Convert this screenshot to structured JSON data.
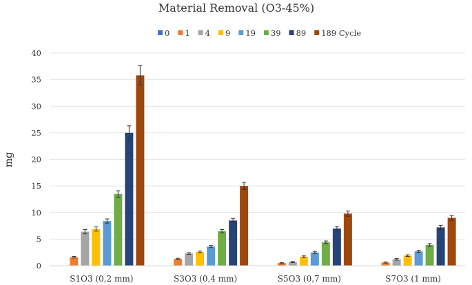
{
  "chart_data": {
    "type": "bar",
    "title": "Material Removal (O3-45%)",
    "xlabel": "",
    "ylabel": "mg",
    "ylim": [
      0,
      40
    ],
    "yticks": [
      "0",
      "5",
      "10",
      "15",
      "20",
      "25",
      "30",
      "35",
      "40"
    ],
    "grid": true,
    "legend_position": "top",
    "categories": [
      "S1O3 (0,2 mm)",
      "S3O3 (0,4 mm)",
      "S5O3 (0,7 mm)",
      "S7O3 (1 mm)"
    ],
    "series": [
      {
        "name": "0",
        "color": "#4472c4",
        "values": [
          0,
          0,
          0,
          0
        ],
        "errors": [
          0,
          0,
          0,
          0
        ]
      },
      {
        "name": "1",
        "color": "#ed7d31",
        "values": [
          1.6,
          1.3,
          0.5,
          0.6
        ],
        "errors": [
          0.15,
          0.1,
          0.1,
          0.1
        ]
      },
      {
        "name": "4",
        "color": "#a5a5a5",
        "values": [
          6.4,
          2.3,
          0.7,
          1.2
        ],
        "errors": [
          0.4,
          0.15,
          0.1,
          0.15
        ]
      },
      {
        "name": "9",
        "color": "#ffc000",
        "values": [
          6.9,
          2.6,
          1.7,
          1.9
        ],
        "errors": [
          0.4,
          0.15,
          0.15,
          0.15
        ]
      },
      {
        "name": "19",
        "color": "#5b9bd5",
        "values": [
          8.4,
          3.6,
          2.5,
          2.7
        ],
        "errors": [
          0.4,
          0.2,
          0.2,
          0.2
        ]
      },
      {
        "name": "39",
        "color": "#70ad47",
        "values": [
          13.5,
          6.5,
          4.4,
          3.9
        ],
        "errors": [
          0.6,
          0.3,
          0.25,
          0.25
        ]
      },
      {
        "name": "89",
        "color": "#264478",
        "values": [
          25.0,
          8.5,
          7.0,
          7.2
        ],
        "errors": [
          1.3,
          0.4,
          0.4,
          0.4
        ]
      },
      {
        "name": "189 Cycle",
        "color": "#9e480e",
        "values": [
          35.8,
          15.0,
          9.8,
          9.0
        ],
        "errors": [
          1.8,
          0.7,
          0.5,
          0.45
        ]
      }
    ]
  }
}
